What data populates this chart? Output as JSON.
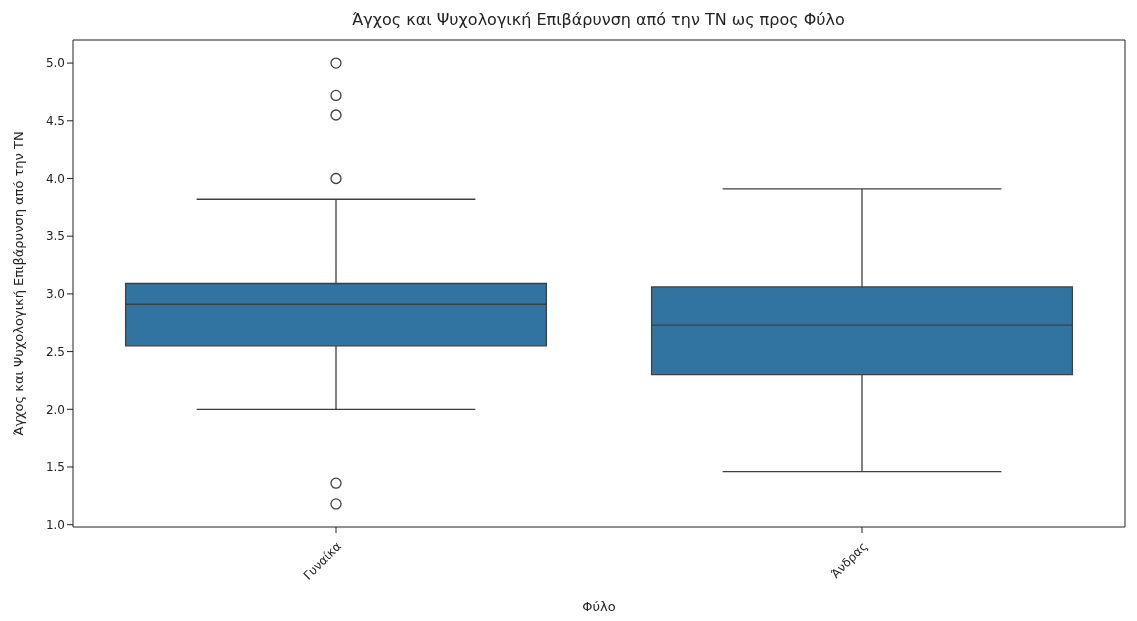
{
  "chart_data": {
    "type": "box",
    "title": "Άγχος και Ψυχολογική Επιβάρυνση από την ΤΝ ως προς Φύλο",
    "xlabel": "Φύλο",
    "ylabel": "Άγχος και Ψυχολογική Επιβάρυνση από την ΤΝ",
    "categories": [
      "Γυναίκα",
      "Άνδρας"
    ],
    "color": "#3274a1",
    "boxes": [
      {
        "low": 2.0,
        "q1": 2.55,
        "median": 2.91,
        "q3": 3.09,
        "high": 3.82,
        "outliers": [
          5.0,
          4.72,
          4.55,
          4.0,
          1.36,
          1.18
        ]
      },
      {
        "low": 1.46,
        "q1": 2.3,
        "median": 2.73,
        "q3": 3.06,
        "high": 3.91
      }
    ],
    "ylim": [
      0.98,
      5.2
    ],
    "yticks": [
      {
        "value": 1,
        "label": "1.0"
      },
      1.5,
      {
        "value": 2,
        "label": "2.0"
      },
      2.5,
      {
        "value": 3,
        "label": "3.0"
      },
      3.5,
      {
        "value": 4,
        "label": "4.0"
      },
      4.5,
      {
        "value": 5,
        "label": "5.0"
      }
    ]
  }
}
